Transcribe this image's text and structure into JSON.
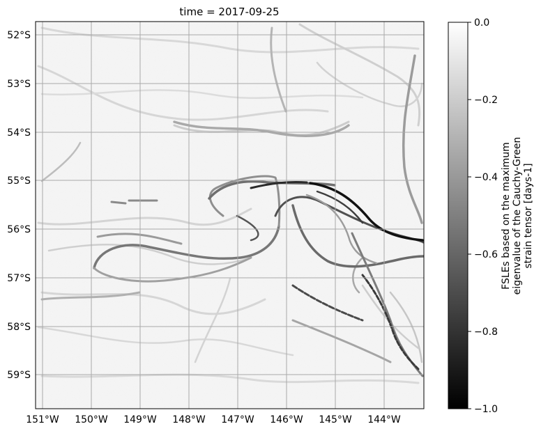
{
  "map": {
    "title": "time = 2017-09-25",
    "x_ticks": [
      "151°W",
      "150°W",
      "149°W",
      "148°W",
      "147°W",
      "146°W",
      "145°W",
      "144°W"
    ],
    "y_ticks": [
      "52°S",
      "53°S",
      "54°S",
      "55°S",
      "56°S",
      "57°S",
      "58°S",
      "59°S"
    ],
    "lon_range": [
      -151.2,
      -143.2
    ],
    "lat_range": [
      -59.7,
      -51.8
    ],
    "gridlines": true,
    "colormap": "grayscale",
    "colors": {
      "min": "#000000",
      "max": "#ffffff",
      "grid": "#a9a9a9",
      "frame": "#000000"
    }
  },
  "colorbar": {
    "label_lines": [
      "FSLEs based on the maximum",
      "eigenvalue of the Cauchy-Green",
      "strain tensor [days-1]"
    ],
    "range": [
      -1.0,
      0.0
    ],
    "tick_values": [
      0.0,
      -0.2,
      -0.4,
      -0.6,
      -0.8,
      -1.0
    ],
    "tick_labels": [
      "0.0",
      "−0.2",
      "−0.4",
      "−0.6",
      "−0.8",
      "−1.0"
    ]
  }
}
